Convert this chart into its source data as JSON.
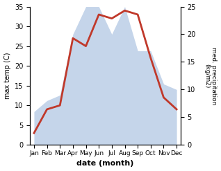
{
  "months": [
    "Jan",
    "Feb",
    "Mar",
    "Apr",
    "May",
    "Jun",
    "Jul",
    "Aug",
    "Sep",
    "Oct",
    "Nov",
    "Dec"
  ],
  "temperature": [
    3,
    9,
    10,
    27,
    25,
    33,
    32,
    34,
    33,
    22,
    12,
    9
  ],
  "precipitation": [
    6,
    8,
    9,
    20,
    25,
    25,
    20,
    25,
    17,
    17,
    11,
    10
  ],
  "temp_color": "#c0392b",
  "precip_color": "#c5d5ea",
  "ylabel_left": "max temp (C)",
  "ylabel_right": "med. precipitation\n(kg/m2)",
  "xlabel": "date (month)",
  "ylim_left": [
    0,
    35
  ],
  "ylim_right": [
    0,
    25
  ],
  "yticks_left": [
    0,
    5,
    10,
    15,
    20,
    25,
    30,
    35
  ],
  "yticks_right": [
    0,
    5,
    10,
    15,
    20,
    25
  ],
  "temp_linewidth": 2.0
}
